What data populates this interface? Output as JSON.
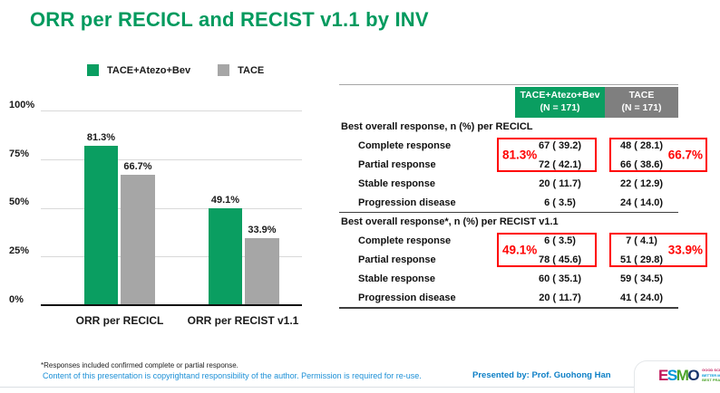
{
  "slide": {
    "title": "ORR per RECICL and RECIST v1.1 by INV",
    "footnote": "*Responses included confirmed complete or partial response.",
    "copyright": "Content of this presentation is copyrightand responsibility of the author. Permission is required for re-use.",
    "presented_by": "Presented by: Prof. Guohong Han"
  },
  "colors": {
    "title_green": "#009a5e",
    "bar_green": "#0a9e61",
    "bar_gray": "#a6a6a6",
    "header_gray": "#7f7f7f",
    "highlight_red": "#ff0000",
    "copyright_blue": "#1b8fd6",
    "presented_blue": "#0d7fc6"
  },
  "legend": [
    {
      "label": "TACE+Atezo+Bev",
      "color": "#0a9e61"
    },
    {
      "label": "TACE",
      "color": "#a6a6a6"
    }
  ],
  "chart_data": {
    "type": "bar",
    "categories": [
      "ORR per RECICL",
      "ORR per RECIST v1.1"
    ],
    "series": [
      {
        "name": "TACE+Atezo+Bev",
        "color": "#0a9e61",
        "values": [
          81.3,
          49.1
        ],
        "labels": [
          "81.3%",
          "49.1%"
        ]
      },
      {
        "name": "TACE",
        "color": "#a6a6a6",
        "values": [
          66.7,
          33.9
        ],
        "labels": [
          "66.7%",
          "33.9%"
        ]
      }
    ],
    "ylim": [
      0,
      100
    ],
    "yticks": [
      "0%",
      "25%",
      "50%",
      "75%",
      "100%"
    ],
    "grid": true,
    "legend_position": "top-left"
  },
  "table": {
    "columns": [
      {
        "label": "TACE+Atezo+Bev",
        "sub": "(N = 171)"
      },
      {
        "label": "TACE",
        "sub": "(N = 171)"
      }
    ],
    "sections": [
      {
        "header": "Best overall response, n (%) per RECICL",
        "orr_left": "81.3%",
        "orr_right": "66.7%",
        "rows": [
          {
            "label": "Complete response",
            "v1": "67 ( 39.2)",
            "v2": "48 ( 28.1)"
          },
          {
            "label": "Partial response",
            "v1": "72 ( 42.1)",
            "v2": "66 ( 38.6)"
          },
          {
            "label": "Stable response",
            "v1": "20 ( 11.7)",
            "v2": "22 ( 12.9)"
          },
          {
            "label": "Progression disease",
            "v1": "6 ( 3.5)",
            "v2": "24 ( 14.0)"
          }
        ]
      },
      {
        "header": "Best overall response*, n (%) per RECIST v1.1",
        "orr_left": "49.1%",
        "orr_right": "33.9%",
        "rows": [
          {
            "label": "Complete response",
            "v1": "6 ( 3.5)",
            "v2": "7 ( 4.1)"
          },
          {
            "label": "Partial response",
            "v1": "78 ( 45.6)",
            "v2": "51 ( 29.8)"
          },
          {
            "label": "Stable response",
            "v1": "60 ( 35.1)",
            "v2": "59 ( 34.5)"
          },
          {
            "label": "Progression disease",
            "v1": "20 ( 11.7)",
            "v2": "41 ( 24.0)"
          }
        ]
      }
    ]
  },
  "logo": {
    "letters": [
      {
        "ch": "E",
        "color": "#c2185b"
      },
      {
        "ch": "S",
        "color": "#0097d7"
      },
      {
        "ch": "M",
        "color": "#4ba329"
      },
      {
        "ch": "O",
        "color": "#16356c"
      }
    ],
    "tagline": [
      {
        "text": "GOOD SCIENCE",
        "color": "#c2185b"
      },
      {
        "text": "BETTER MEDICINE",
        "color": "#0097d7"
      },
      {
        "text": "BEST PRACTICE",
        "color": "#4ba329"
      }
    ]
  }
}
